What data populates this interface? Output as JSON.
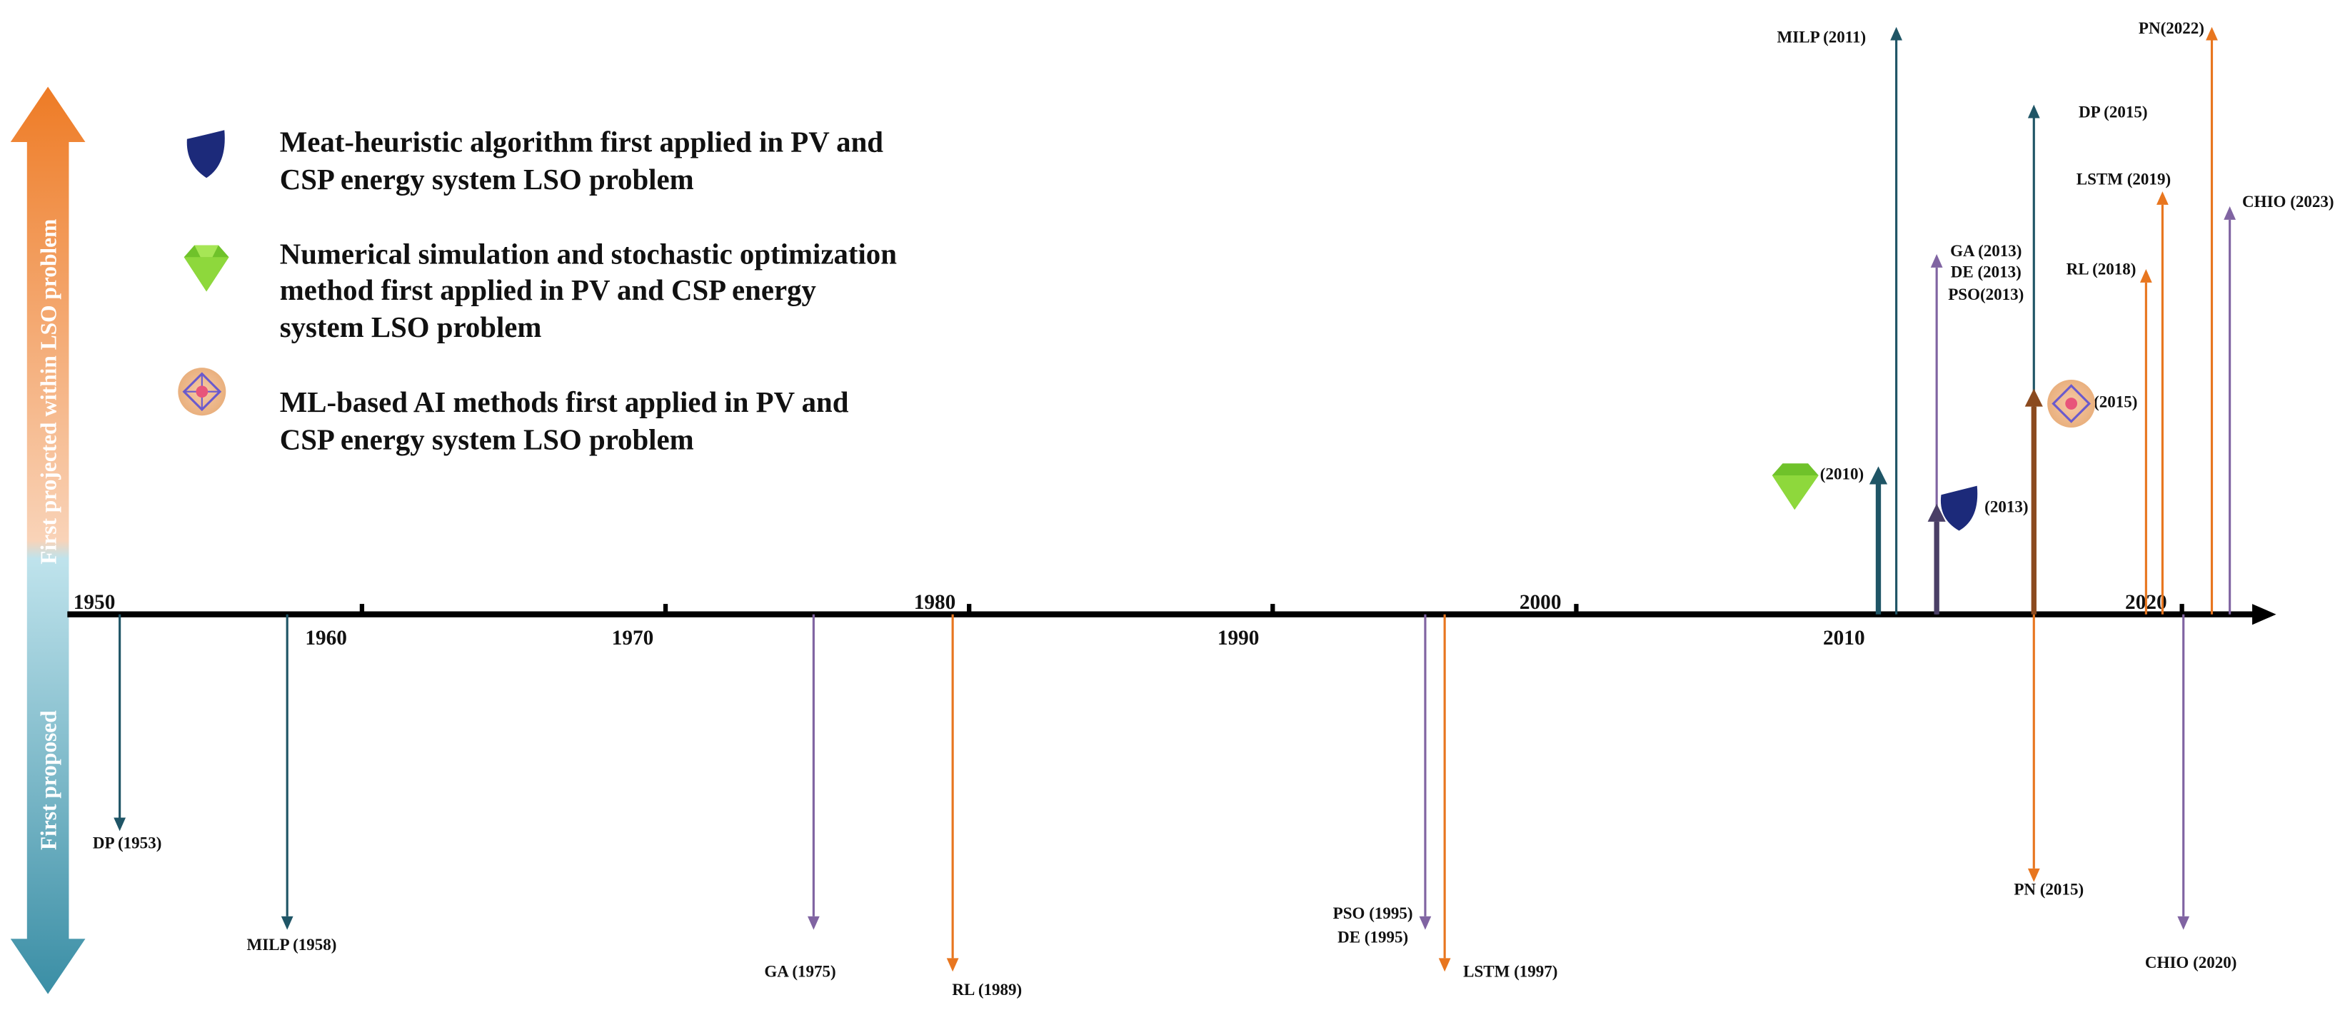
{
  "legend": [
    {
      "lines": [
        "Meat-heuristic algorithm first applied in PV and",
        "CSP energy system LSO problem"
      ]
    },
    {
      "lines": [
        "Numerical simulation and stochastic optimization",
        "method first applied in PV and CSP energy",
        "system LSO problem"
      ]
    },
    {
      "lines": [
        "ML-based AI methods first applied in PV and",
        "CSP energy system LSO problem"
      ]
    }
  ],
  "side_labels": [
    "First projected within LSO problem",
    "First proposed"
  ],
  "axis_years": [
    "1950",
    "1960",
    "1970",
    "1980",
    "1990",
    "2000",
    "2010",
    "2020"
  ],
  "events": [
    {
      "labels": [
        "DP (1953)"
      ]
    },
    {
      "labels": [
        "MILP (1958)"
      ]
    },
    {
      "labels": [
        "GA (1975)"
      ]
    },
    {
      "labels": [
        "RL (1989)"
      ]
    },
    {
      "labels": [
        "PSO (1995)",
        "DE (1995)"
      ]
    },
    {
      "labels": [
        "LSTM (1997)"
      ]
    },
    {
      "labels": [
        "PN (2015)"
      ]
    },
    {
      "labels": [
        "CHIO (2020)"
      ]
    },
    {
      "labels": [
        "MILP (2011)"
      ]
    },
    {
      "labels": [
        "DP (2015)"
      ]
    },
    {
      "labels": [
        "GA (2013)",
        "DE (2013)",
        "PSO(2013)"
      ]
    },
    {
      "labels": [
        "PN(2022)"
      ]
    },
    {
      "labels": [
        "LSTM (2019)"
      ]
    },
    {
      "labels": [
        "RL (2018)"
      ]
    },
    {
      "labels": [
        "CHIO (2023)"
      ]
    },
    {
      "labels": [
        "(2010)"
      ]
    },
    {
      "labels": [
        "(2013)"
      ]
    },
    {
      "labels": [
        "(2015)"
      ]
    }
  ]
}
